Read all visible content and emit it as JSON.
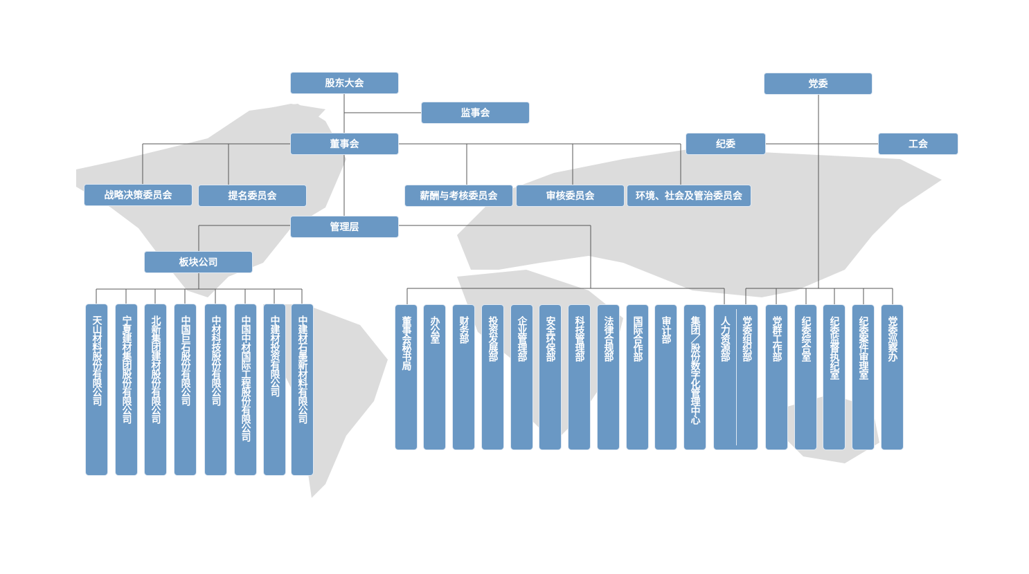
{
  "top": {
    "shareholders": "股东大会",
    "supervisors": "监事会",
    "board": "董事会",
    "management": "管理层",
    "segments": "板块公司",
    "party_committee": "党委",
    "discipline_committee": "纪委",
    "union": "工会"
  },
  "board_committees": [
    "战略决策委员会",
    "提名委员会",
    "薪酬与考核委员会",
    "审核委员会",
    "环境、社会及管治委员会"
  ],
  "segment_companies": [
    "天山材料股份有限公司",
    "宁夏建材集团股份有限公司",
    "北新集团建材股份有限公司",
    "中国巨石股份有限公司",
    "中材科技股份有限公司",
    "中国中材国际工程股份有限公司",
    "中建材投资有限公司",
    "中建材石墨新材料有限公司"
  ],
  "departments": [
    "董事会秘书局",
    "办公室",
    "财务部",
    "投资发展部",
    "企业管理部",
    "安全环保部",
    "科技管理部",
    "法律合规部",
    "国际合作部",
    "审计部",
    "集团／股份数字化管理中心"
  ],
  "shared_department": {
    "left": "人力资源部",
    "right": "党委组织部"
  },
  "party_departments": [
    "党群工作部",
    "纪委综合室",
    "纪委监督执纪室",
    "纪委案件审理室",
    "党委巡察办"
  ],
  "colors": {
    "box": "#6a98c4",
    "line": "#555555",
    "map": "#d9d9d9"
  }
}
